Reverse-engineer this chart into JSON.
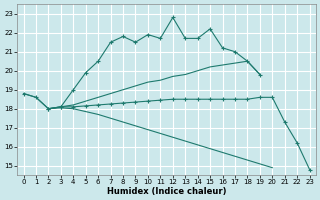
{
  "xlabel": "Humidex (Indice chaleur)",
  "background_color": "#cce8eb",
  "grid_color": "#ffffff",
  "line_color": "#1e7a6e",
  "xlim": [
    -0.5,
    23.5
  ],
  "ylim": [
    14.5,
    23.5
  ],
  "xticks": [
    0,
    1,
    2,
    3,
    4,
    5,
    6,
    7,
    8,
    9,
    10,
    11,
    12,
    13,
    14,
    15,
    16,
    17,
    18,
    19,
    20,
    21,
    22,
    23
  ],
  "yticks": [
    15,
    16,
    17,
    18,
    19,
    20,
    21,
    22,
    23
  ],
  "line1_x": [
    0,
    1,
    2,
    3,
    4,
    5,
    6,
    7,
    8,
    9,
    10,
    11,
    12,
    13,
    14,
    15,
    16,
    17,
    18,
    19
  ],
  "line1_y": [
    18.8,
    18.6,
    18.0,
    18.1,
    19.0,
    19.9,
    20.5,
    21.5,
    21.8,
    21.5,
    21.9,
    21.7,
    22.8,
    21.7,
    21.7,
    22.2,
    21.2,
    21.0,
    20.5,
    19.8
  ],
  "line2_x": [
    0,
    1,
    2,
    3,
    4,
    5,
    6,
    7,
    8,
    9,
    10,
    11,
    12,
    13,
    14,
    15,
    16,
    17,
    18,
    19
  ],
  "line2_y": [
    18.8,
    18.6,
    18.0,
    18.1,
    18.2,
    18.4,
    18.6,
    18.8,
    19.0,
    19.2,
    19.4,
    19.5,
    19.7,
    19.8,
    20.0,
    20.2,
    20.3,
    20.4,
    20.5,
    19.8
  ],
  "line3_x": [
    2,
    3,
    4,
    5,
    6,
    7,
    8,
    9,
    10,
    11,
    12,
    13,
    14,
    15,
    16,
    17,
    18,
    19,
    20,
    21,
    22,
    23
  ],
  "line3_y": [
    18.0,
    18.1,
    18.1,
    18.15,
    18.2,
    18.25,
    18.3,
    18.35,
    18.4,
    18.45,
    18.5,
    18.5,
    18.5,
    18.5,
    18.5,
    18.5,
    18.5,
    18.6,
    18.6,
    17.3,
    16.2,
    14.8
  ],
  "line4_x": [
    2,
    3,
    4,
    5,
    6,
    7,
    8,
    9,
    10,
    11,
    12,
    13,
    14,
    15,
    16,
    17,
    18,
    19,
    20,
    21,
    22,
    23
  ],
  "line4_y": [
    18.0,
    18.05,
    18.0,
    17.85,
    17.7,
    17.5,
    17.3,
    17.1,
    16.9,
    16.7,
    16.5,
    16.3,
    16.1,
    15.9,
    15.7,
    15.5,
    15.3,
    15.1,
    14.9,
    null,
    null,
    null
  ]
}
